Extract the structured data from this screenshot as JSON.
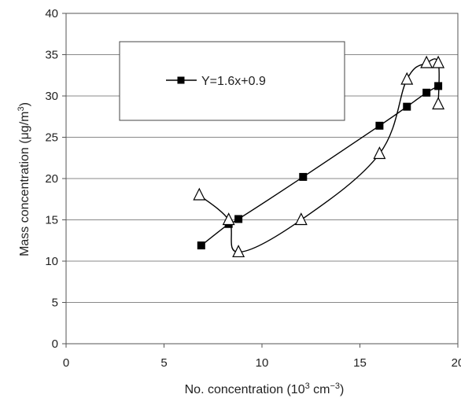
{
  "chart_data": {
    "type": "scatter",
    "xlabel": "No. concentration (10",
    "xlabel_sup": "3",
    "xlabel_mid": " cm",
    "xlabel_sup2": "−3",
    "xlabel_end": ")",
    "ylabel": "Mass concentration (μg/m",
    "ylabel_sup": "3",
    "ylabel_end": ")",
    "xlim": [
      0,
      20
    ],
    "ylim": [
      0,
      40
    ],
    "xticks": [
      "0",
      "5",
      "10",
      "15",
      "20"
    ],
    "yticks": [
      "0",
      "5",
      "10",
      "15",
      "20",
      "25",
      "30",
      "35",
      "40"
    ],
    "grid": "horizontal",
    "legend_position": "top-left",
    "series": [
      {
        "name": "Y=1.6x+0.9",
        "marker": "filled-square",
        "color": "#000000",
        "points": [
          {
            "x": 6.9,
            "y": 11.9
          },
          {
            "x": 8.3,
            "y": 14.5
          },
          {
            "x": 8.8,
            "y": 15.1
          },
          {
            "x": 12.1,
            "y": 20.2
          },
          {
            "x": 16.0,
            "y": 26.4
          },
          {
            "x": 17.4,
            "y": 28.7
          },
          {
            "x": 18.4,
            "y": 30.4
          },
          {
            "x": 19.0,
            "y": 31.2
          }
        ]
      },
      {
        "marker": "open-triangle",
        "color": "#000000",
        "points": [
          {
            "x": 6.8,
            "y": 18.0
          },
          {
            "x": 8.3,
            "y": 15.0
          },
          {
            "x": 8.8,
            "y": 11.1
          },
          {
            "x": 12.0,
            "y": 15.0
          },
          {
            "x": 16.0,
            "y": 23.0
          },
          {
            "x": 17.4,
            "y": 32.0
          },
          {
            "x": 18.4,
            "y": 34.0
          },
          {
            "x": 19.0,
            "y": 34.0
          },
          {
            "x": 19.0,
            "y": 29.0
          }
        ]
      }
    ]
  }
}
